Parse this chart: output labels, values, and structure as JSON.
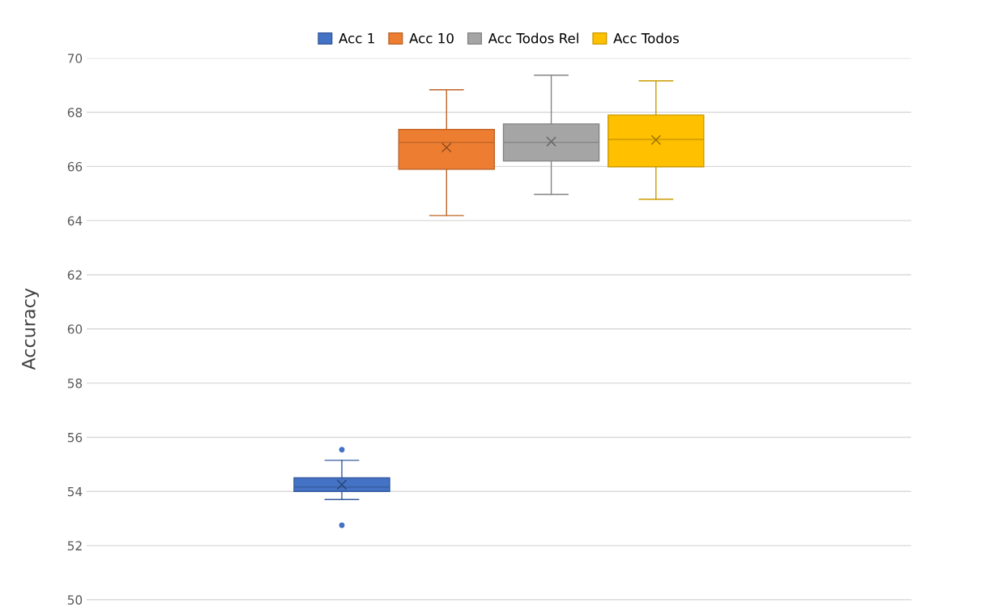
{
  "chart_data": {
    "type": "box",
    "ylabel": "Accuracy",
    "categories": [
      null
    ],
    "ylim": [
      50,
      70
    ],
    "yticks": [
      50,
      52,
      54,
      56,
      58,
      60,
      62,
      64,
      66,
      68,
      70
    ],
    "grid": "y",
    "legend": "top",
    "marker": "cross",
    "series": [
      {
        "name": "Acc 1",
        "color": "#4472c4",
        "boxes": [
          {
            "low": 53.7,
            "q1": 54.0,
            "median": 54.16,
            "q3": 54.5,
            "high": 55.15,
            "mean": 54.25,
            "outliers": [
              55.54,
              52.75
            ]
          }
        ]
      },
      {
        "name": "Acc 10",
        "color": "#ed7d31",
        "boxes": [
          {
            "low": 64.19,
            "q1": 65.9,
            "median": 66.89,
            "q3": 67.37,
            "high": 68.83,
            "mean": 66.7
          }
        ]
      },
      {
        "name": "Acc Todos Rel",
        "color": "#a5a5a5",
        "boxes": [
          {
            "low": 64.97,
            "q1": 66.2,
            "median": 66.89,
            "q3": 67.57,
            "high": 69.37,
            "mean": 66.92
          }
        ]
      },
      {
        "name": "Acc Todos",
        "color": "#ffc000",
        "boxes": [
          {
            "low": 64.79,
            "q1": 65.99,
            "median": 67.0,
            "q3": 67.9,
            "high": 69.16,
            "mean": 66.98
          }
        ]
      }
    ]
  }
}
